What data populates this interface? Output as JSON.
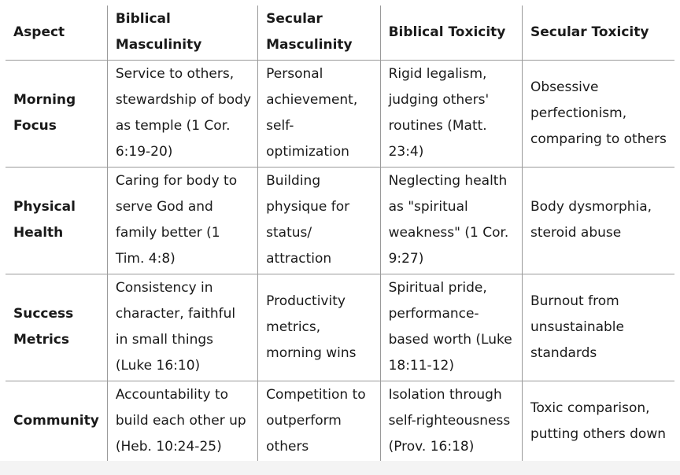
{
  "table": {
    "headers": [
      "Aspect",
      "Biblical Masculinity",
      "Secular Masculinity",
      "Biblical Toxicity",
      "Secular Toxicity"
    ],
    "rows": [
      {
        "aspect": "Morning Focus",
        "biblical_masculinity": "Service to others, stewardship of body as temple (1 Cor. 6:19-20)",
        "secular_masculinity": "Personal achievement, self-optimization",
        "biblical_toxicity": "Rigid legalism, judging others' routines (Matt. 23:4)",
        "secular_toxicity": "Obsessive perfectionism, comparing to others"
      },
      {
        "aspect": "Physical Health",
        "biblical_masculinity": "Caring for body to serve God and family better (1 Tim. 4:8)",
        "secular_masculinity": "Building physique for status/ attraction",
        "biblical_toxicity": "Neglecting health as \"spiritual weakness\" (1 Cor. 9:27)",
        "secular_toxicity": "Body dysmorphia, steroid abuse"
      },
      {
        "aspect": "Success Metrics",
        "biblical_masculinity": "Consistency in character, faithful in small things (Luke 16:10)",
        "secular_masculinity": "Productivity metrics, morning wins",
        "biblical_toxicity": "Spiritual pride, performance-based worth (Luke 18:11-12)",
        "secular_toxicity": "Burnout from unsustainable standards"
      },
      {
        "aspect": "Community",
        "biblical_masculinity": "Accountability to build each other up (Heb. 10:24-25)",
        "secular_masculinity": "Competition to outperform others",
        "biblical_toxicity": "Isolation through self-righteousness (Prov. 16:18)",
        "secular_toxicity": "Toxic comparison, putting others down"
      }
    ]
  }
}
